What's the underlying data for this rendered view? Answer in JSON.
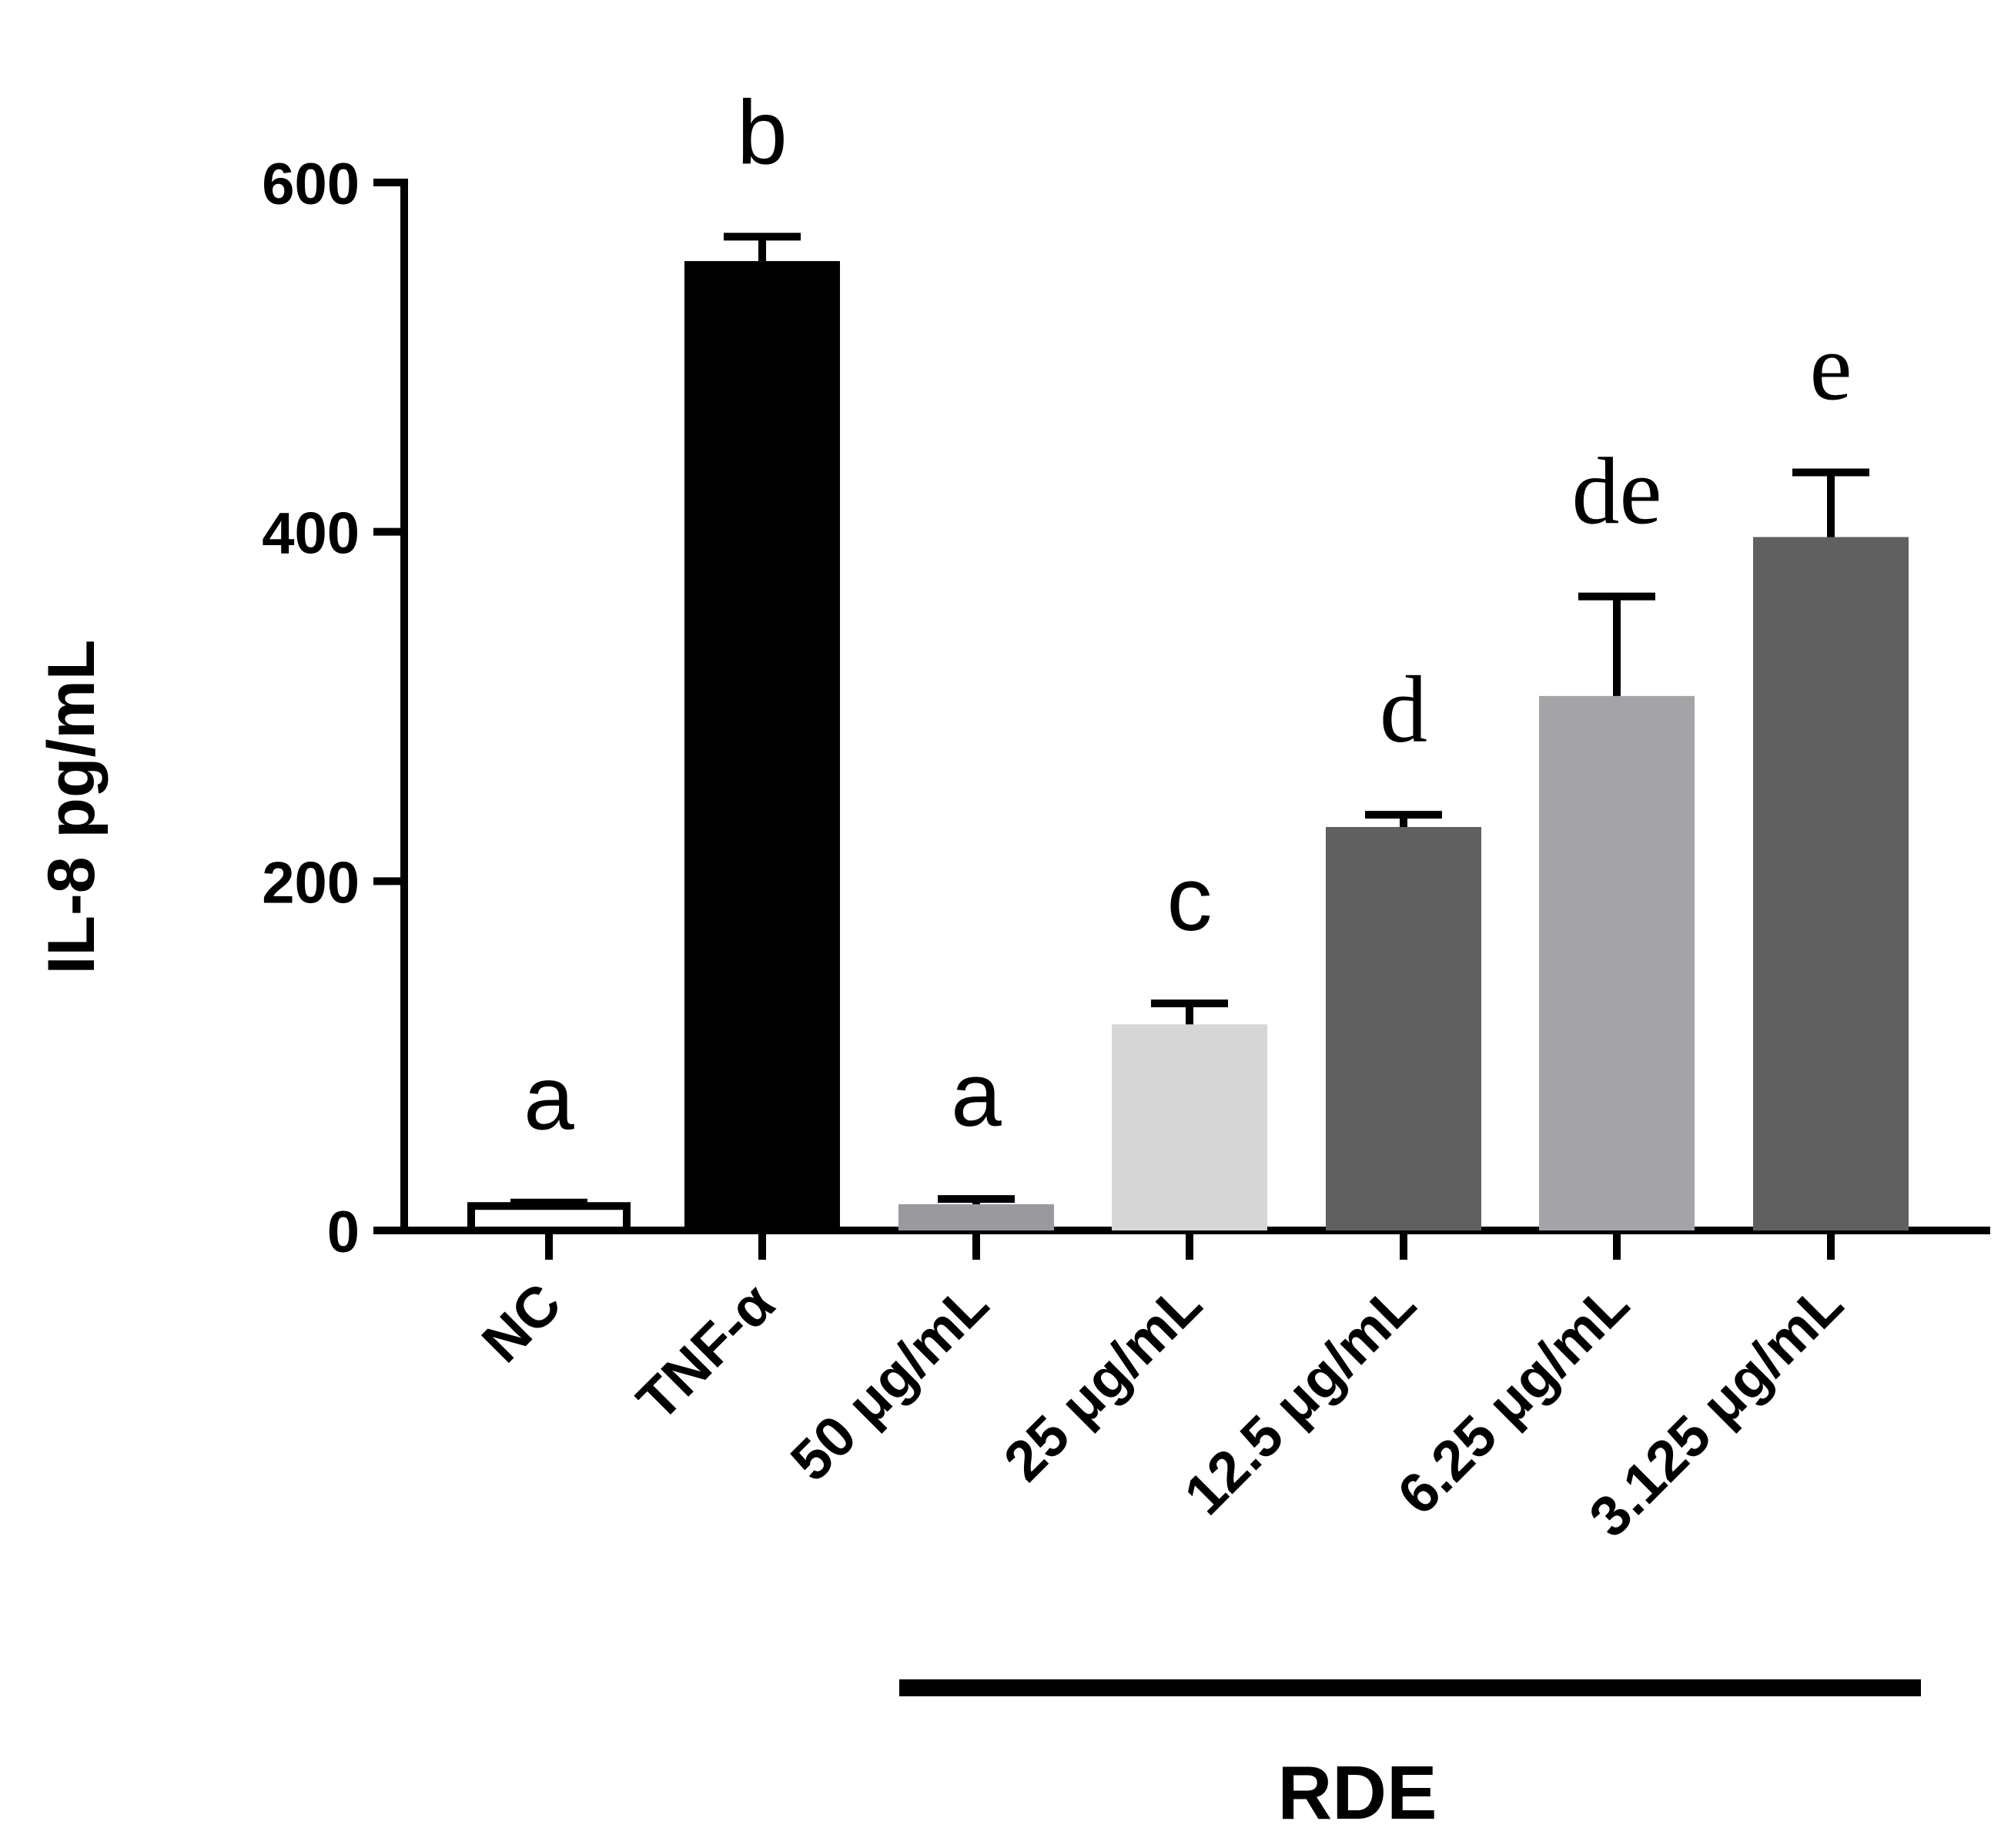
{
  "chart_data": {
    "type": "bar",
    "ylabel": "IL-8 pg/mL",
    "xlabel": "",
    "ylim": [
      0,
      600
    ],
    "yticks": [
      0,
      200,
      400,
      600
    ],
    "categories": [
      "NC",
      "TNF-α",
      "50 μg/mL",
      "25 μg/mL",
      "12.5 μg/mL",
      "6.25 μg/mL",
      "3.125 μg/mL"
    ],
    "values": [
      14,
      555,
      15,
      118,
      231,
      306,
      397
    ],
    "errors": [
      2,
      14,
      3,
      12,
      7,
      57,
      37
    ],
    "significance_letters": [
      "a",
      "b",
      "a",
      "c",
      "d",
      "de",
      "e"
    ],
    "bar_colors": [
      "#ffffff",
      "#000000",
      "#9a9a9e",
      "#d6d6d6",
      "#606060",
      "#a4a3a8",
      "#606060"
    ],
    "group_label": "RDE",
    "group_members": [
      "50 μg/mL",
      "25 μg/mL",
      "12.5 μg/mL",
      "6.25 μg/mL",
      "3.125 μg/mL"
    ]
  }
}
